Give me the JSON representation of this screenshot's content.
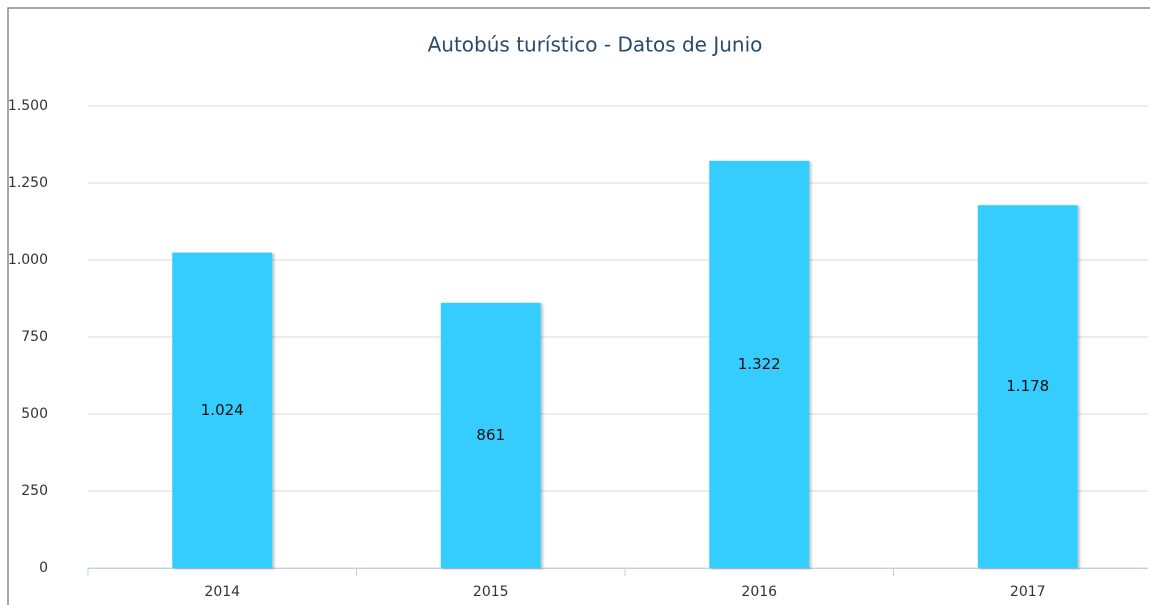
{
  "chart_data": {
    "type": "bar",
    "title": "Autobús turístico - Datos de Junio",
    "categories": [
      "2014",
      "2015",
      "2016",
      "2017"
    ],
    "values": [
      1024,
      861,
      1322,
      1178
    ],
    "value_labels": [
      "1.024",
      "861",
      "1.322",
      "1.178"
    ],
    "color": "#36cdfd",
    "ylim": [
      0,
      1500
    ],
    "yticks": [
      0,
      250,
      500,
      750,
      {
        "value": 1000,
        "label": "1.000"
      },
      {
        "value": 1250,
        "label": "1.250"
      },
      {
        "value": 1500,
        "label": "1.500"
      }
    ],
    "grid": true
  }
}
